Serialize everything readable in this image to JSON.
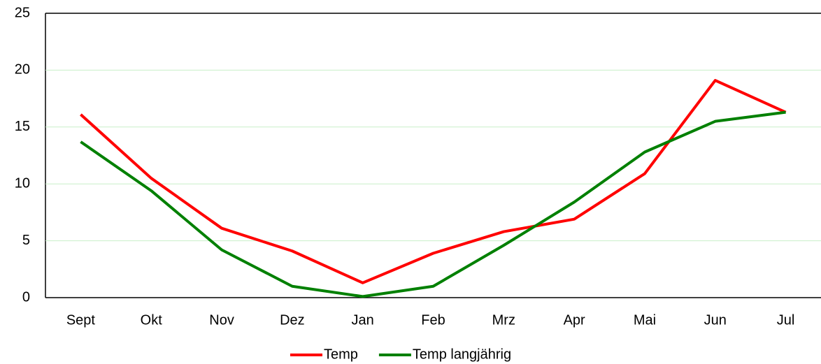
{
  "chart_data": {
    "type": "line",
    "categories": [
      "Sept",
      "Okt",
      "Nov",
      "Dez",
      "Jan",
      "Feb",
      "Mrz",
      "Apr",
      "Mai",
      "Jun",
      "Jul"
    ],
    "series": [
      {
        "name": "Temp",
        "color": "#ff0000",
        "values": [
          16.1,
          10.5,
          6.1,
          4.1,
          1.3,
          3.9,
          5.8,
          6.9,
          10.9,
          19.1,
          16.3
        ]
      },
      {
        "name": "Temp langjährig",
        "color": "#008000",
        "values": [
          13.7,
          9.4,
          4.2,
          1.0,
          0.1,
          1.0,
          4.6,
          8.4,
          12.8,
          15.5,
          16.3
        ]
      }
    ],
    "ylim": [
      0,
      25
    ],
    "yticks": [
      0,
      5,
      10,
      15,
      20,
      25
    ],
    "grid": true,
    "legend": "bottom"
  }
}
